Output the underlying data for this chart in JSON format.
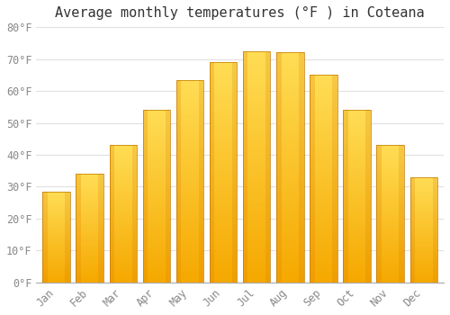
{
  "title": "Average monthly temperatures (°F ) in Coteana",
  "months": [
    "Jan",
    "Feb",
    "Mar",
    "Apr",
    "May",
    "Jun",
    "Jul",
    "Aug",
    "Sep",
    "Oct",
    "Nov",
    "Dec"
  ],
  "values": [
    28.5,
    34.0,
    43.0,
    54.0,
    63.5,
    69.0,
    72.5,
    72.0,
    65.0,
    54.0,
    43.0,
    33.0
  ],
  "bar_color_bottom": "#F5A800",
  "bar_color_top": "#FFD966",
  "bar_color_mid": "#FFBE00",
  "background_color": "#FFFFFF",
  "grid_color": "#E0E0E0",
  "ylim": [
    0,
    80
  ],
  "yticks": [
    0,
    10,
    20,
    30,
    40,
    50,
    60,
    70,
    80
  ],
  "title_fontsize": 11,
  "tick_fontsize": 8.5,
  "font_family": "monospace"
}
